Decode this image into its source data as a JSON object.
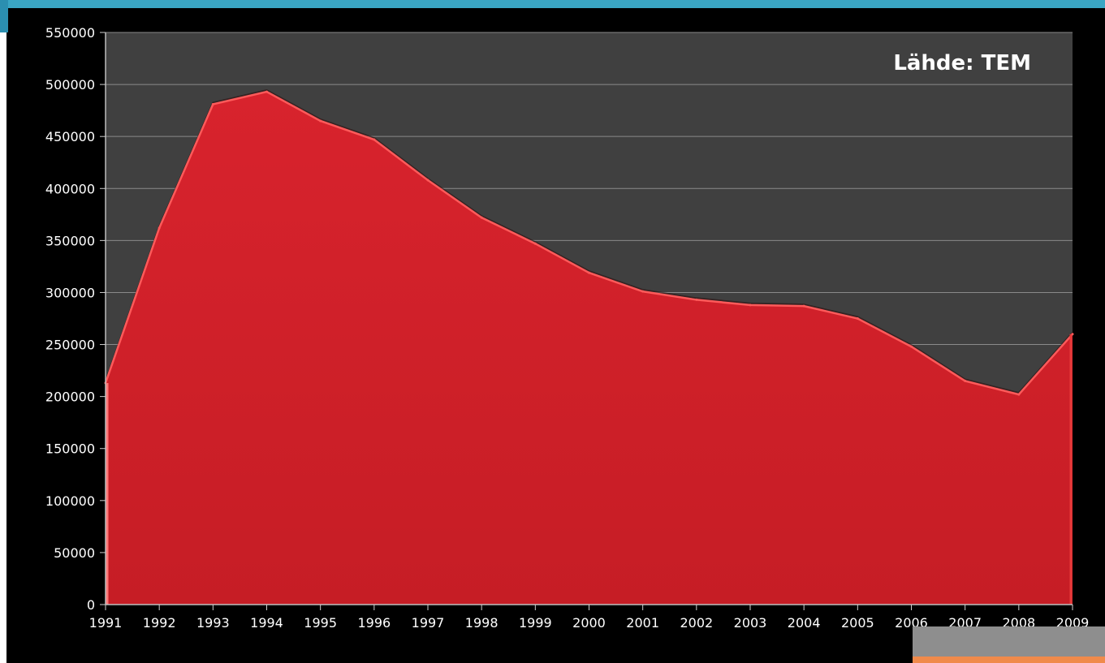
{
  "chart_data": {
    "type": "area",
    "title": "",
    "xlabel": "",
    "ylabel": "",
    "annotation": "Lähde: TEM",
    "x": [
      "1991",
      "1992",
      "1993",
      "1994",
      "1995",
      "1996",
      "1997",
      "1998",
      "1999",
      "2000",
      "2001",
      "2002",
      "2003",
      "2004",
      "2005",
      "2006",
      "2007",
      "2008",
      "2009"
    ],
    "series": [
      {
        "values": [
          213000,
          362000,
          481000,
          493000,
          465000,
          447000,
          408000,
          372000,
          347000,
          319000,
          301000,
          293000,
          288000,
          287000,
          275000,
          248000,
          215000,
          202000,
          260000
        ]
      }
    ],
    "ylim": [
      0,
      550000
    ],
    "yticks": [
      "0",
      "50000",
      "100000",
      "150000",
      "200000",
      "250000",
      "300000",
      "350000",
      "400000",
      "450000",
      "500000",
      "550000"
    ],
    "grid": true,
    "colors": {
      "fill": "#d2222b",
      "edge": "#ff5a5a",
      "plot_bg": "#404040",
      "gridline": "#8a8a8a"
    }
  }
}
